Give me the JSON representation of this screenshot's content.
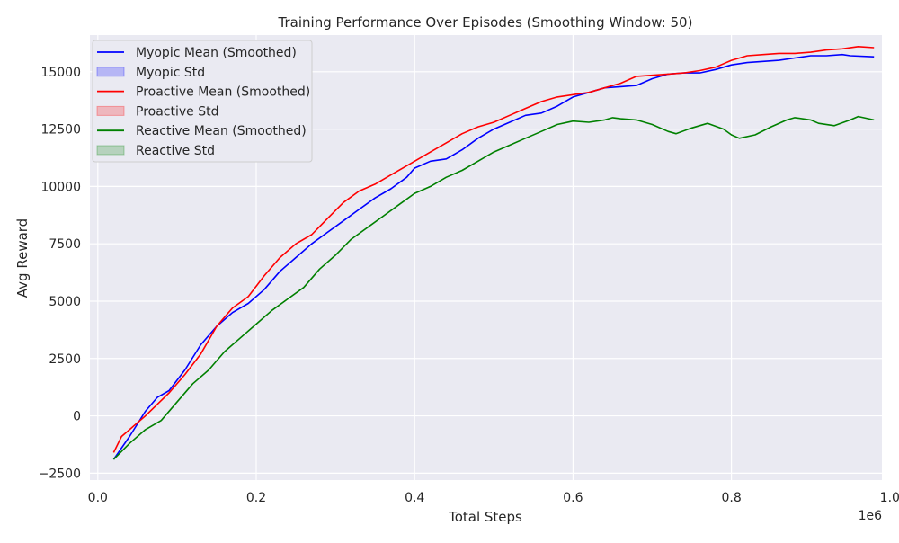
{
  "chart_data": {
    "type": "line",
    "title": "Training Performance Over Episodes (Smoothing Window: 50)",
    "xlabel": "Total Steps",
    "ylabel": "Avg Reward",
    "x_offset_label": "1e6",
    "xlim": [
      -0.01,
      0.99
    ],
    "ylim": [
      -2800,
      16600
    ],
    "x_ticks": [
      0.0,
      0.2,
      0.4,
      0.6,
      0.8,
      1.0
    ],
    "x_tick_labels": [
      "0.0",
      "0.2",
      "0.4",
      "0.6",
      "0.8",
      "1.0"
    ],
    "y_ticks": [
      -2500,
      0,
      2500,
      5000,
      7500,
      10000,
      12500,
      15000
    ],
    "y_tick_labels": [
      "−2500",
      "0",
      "2500",
      "5000",
      "7500",
      "10000",
      "12500",
      "15000"
    ],
    "grid": true,
    "legend_position": "top-left",
    "legend": [
      {
        "label": "Myopic Mean (Smoothed)",
        "kind": "line",
        "color": "#0000ff"
      },
      {
        "label": "Myopic Std",
        "kind": "patch",
        "color": "#0000ff"
      },
      {
        "label": "Proactive Mean (Smoothed)",
        "kind": "line",
        "color": "#ff0000"
      },
      {
        "label": "Proactive Std",
        "kind": "patch",
        "color": "#ff0000"
      },
      {
        "label": "Reactive Mean (Smoothed)",
        "kind": "line",
        "color": "#008000"
      },
      {
        "label": "Reactive Std",
        "kind": "patch",
        "color": "#008000"
      }
    ],
    "series": [
      {
        "name": "Myopic Mean (Smoothed)",
        "color": "#0000ff",
        "x": [
          0.02,
          0.04,
          0.06,
          0.075,
          0.09,
          0.11,
          0.13,
          0.15,
          0.17,
          0.19,
          0.21,
          0.23,
          0.25,
          0.27,
          0.29,
          0.31,
          0.33,
          0.35,
          0.37,
          0.39,
          0.4,
          0.42,
          0.44,
          0.46,
          0.48,
          0.5,
          0.52,
          0.54,
          0.56,
          0.58,
          0.6,
          0.62,
          0.64,
          0.66,
          0.68,
          0.7,
          0.72,
          0.74,
          0.76,
          0.78,
          0.8,
          0.82,
          0.84,
          0.86,
          0.88,
          0.9,
          0.92,
          0.94,
          0.95,
          0.98
        ],
        "y": [
          -1900,
          -900,
          200,
          800,
          1100,
          2000,
          3100,
          3900,
          4500,
          4900,
          5500,
          6300,
          6900,
          7500,
          8000,
          8500,
          9000,
          9500,
          9900,
          10400,
          10800,
          11100,
          11200,
          11600,
          12100,
          12500,
          12800,
          13100,
          13200,
          13500,
          13900,
          14100,
          14300,
          14350,
          14400,
          14700,
          14900,
          14950,
          14950,
          15100,
          15300,
          15400,
          15450,
          15500,
          15600,
          15700,
          15700,
          15750,
          15700,
          15650
        ]
      },
      {
        "name": "Proactive Mean (Smoothed)",
        "color": "#ff0000",
        "x": [
          0.02,
          0.03,
          0.04,
          0.05,
          0.06,
          0.075,
          0.09,
          0.11,
          0.13,
          0.15,
          0.17,
          0.19,
          0.21,
          0.23,
          0.25,
          0.27,
          0.29,
          0.31,
          0.33,
          0.35,
          0.37,
          0.39,
          0.4,
          0.42,
          0.44,
          0.46,
          0.48,
          0.5,
          0.52,
          0.54,
          0.56,
          0.58,
          0.6,
          0.62,
          0.64,
          0.66,
          0.68,
          0.7,
          0.72,
          0.74,
          0.76,
          0.78,
          0.8,
          0.82,
          0.84,
          0.86,
          0.88,
          0.9,
          0.92,
          0.94,
          0.96,
          0.98
        ],
        "y": [
          -1600,
          -900,
          -600,
          -300,
          0,
          500,
          1000,
          1800,
          2700,
          3900,
          4700,
          5200,
          6100,
          6900,
          7500,
          7900,
          8600,
          9300,
          9800,
          10100,
          10500,
          10900,
          11100,
          11500,
          11900,
          12300,
          12600,
          12800,
          13100,
          13400,
          13700,
          13900,
          14000,
          14100,
          14300,
          14500,
          14800,
          14850,
          14900,
          14950,
          15050,
          15200,
          15500,
          15700,
          15750,
          15800,
          15800,
          15850,
          15950,
          16000,
          16100,
          16050
        ]
      },
      {
        "name": "Reactive Mean (Smoothed)",
        "color": "#008000",
        "x": [
          0.02,
          0.04,
          0.06,
          0.08,
          0.1,
          0.12,
          0.14,
          0.16,
          0.18,
          0.2,
          0.22,
          0.24,
          0.26,
          0.28,
          0.3,
          0.32,
          0.34,
          0.36,
          0.38,
          0.4,
          0.42,
          0.44,
          0.46,
          0.48,
          0.5,
          0.52,
          0.54,
          0.56,
          0.58,
          0.6,
          0.62,
          0.64,
          0.65,
          0.66,
          0.68,
          0.7,
          0.72,
          0.73,
          0.75,
          0.77,
          0.79,
          0.8,
          0.81,
          0.83,
          0.85,
          0.87,
          0.88,
          0.9,
          0.91,
          0.93,
          0.95,
          0.96,
          0.98
        ],
        "y": [
          -1900,
          -1200,
          -600,
          -200,
          600,
          1400,
          2000,
          2800,
          3400,
          4000,
          4600,
          5100,
          5600,
          6400,
          7000,
          7700,
          8200,
          8700,
          9200,
          9700,
          10000,
          10400,
          10700,
          11100,
          11500,
          11800,
          12100,
          12400,
          12700,
          12850,
          12800,
          12900,
          13000,
          12950,
          12900,
          12700,
          12400,
          12300,
          12550,
          12750,
          12500,
          12250,
          12100,
          12250,
          12600,
          12900,
          13000,
          12900,
          12750,
          12650,
          12900,
          13050,
          12900
        ]
      }
    ]
  }
}
